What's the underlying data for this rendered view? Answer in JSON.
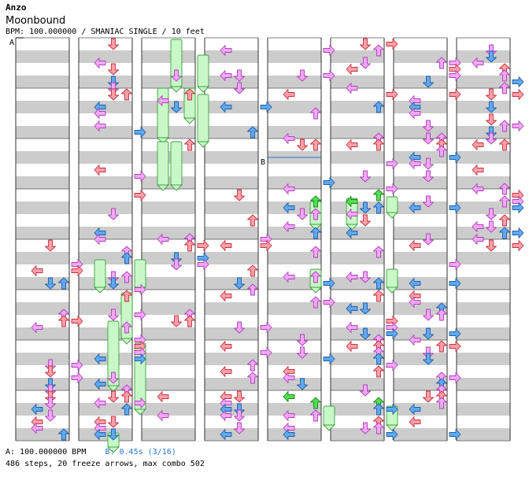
{
  "header": {
    "artist": "Anzo",
    "title": "Moonbound",
    "info": "BPM: 100.000000 / SMANIAC SINGLE / 10 feet"
  },
  "footer": {
    "bpm_a_label": "A: 100.000000 BPM",
    "bpm_b_label": "B: 0.45s (3/16)",
    "stats": "486 steps, 20 freeze arrows, max combo 502"
  },
  "markers": {
    "a": "A",
    "b": "B"
  },
  "colors": {
    "quarter": "#f8a0a8",
    "eighth": "#60a8f0",
    "sixteenth": "#f0a8f8",
    "offbeat": "#50e050",
    "freeze_fill": "#c8f8c8",
    "freeze_edge": "#40a040",
    "stripe": "#cccccc",
    "bpm_b": "#2277cc"
  },
  "icons": [
    "arrow-left-icon",
    "arrow-down-icon",
    "arrow-up-icon",
    "arrow-right-icon"
  ]
}
